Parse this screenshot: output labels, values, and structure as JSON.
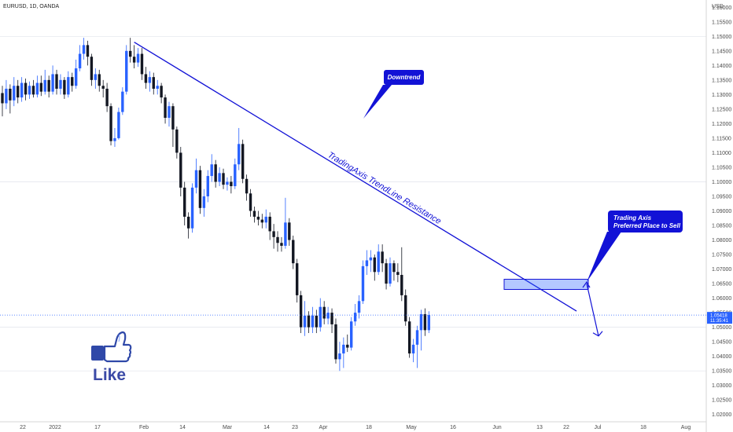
{
  "header": {
    "symbol": "EURUSD, 1D, OANDA",
    "currency": "USD"
  },
  "current_price": {
    "value": 1.05418,
    "label": "1.05418",
    "countdown": "11:35:41",
    "color": "#2962ff"
  },
  "colors": {
    "bull": "#2962ff",
    "bear": "#131722",
    "line": "#1212d6"
  },
  "annotations": {
    "downtrend": "Downtrend",
    "sell_line1": "Trading Axis",
    "sell_line2": "Preferred Place to Sell",
    "trendline": "TradingAxis TrendLine Resistance",
    "like": "Like"
  },
  "icons": {
    "like": "thumbs-up-icon"
  },
  "chart_data": {
    "type": "candlestick",
    "ylim": [
      1.0175,
      1.1625
    ],
    "grid": false,
    "yticks": [
      "1.16000",
      "1.15500",
      "1.15000",
      "1.14500",
      "1.14000",
      "1.13500",
      "1.13000",
      "1.12500",
      "1.12000",
      "1.11500",
      "1.11000",
      "1.10500",
      "1.10000",
      "1.09500",
      "1.09000",
      "1.08500",
      "1.08000",
      "1.07500",
      "1.07000",
      "1.06500",
      "1.06000",
      "1.05500",
      "1.05000",
      "1.04500",
      "1.04000",
      "1.03500",
      "1.03000",
      "1.02500",
      "1.02000"
    ],
    "xticks": [
      "22",
      "2022",
      "17",
      "Feb",
      "14",
      "Mar",
      "14",
      "23",
      "Apr",
      "18",
      "May",
      "16",
      "Jun",
      "13",
      "22",
      "Jul",
      "18",
      "Aug"
    ],
    "candles": [
      [
        1.1305,
        1.127,
        1.133,
        1.1225
      ],
      [
        1.127,
        1.132,
        1.135,
        1.125
      ],
      [
        1.132,
        1.128,
        1.1335,
        1.1235
      ],
      [
        1.128,
        1.133,
        1.136,
        1.126
      ],
      [
        1.133,
        1.129,
        1.135,
        1.127
      ],
      [
        1.129,
        1.134,
        1.136,
        1.1275
      ],
      [
        1.134,
        1.13,
        1.1355,
        1.128
      ],
      [
        1.13,
        1.133,
        1.1345,
        1.1285
      ],
      [
        1.133,
        1.13,
        1.135,
        1.129
      ],
      [
        1.13,
        1.134,
        1.1365,
        1.129
      ],
      [
        1.134,
        1.131,
        1.1365,
        1.1295
      ],
      [
        1.131,
        1.135,
        1.1385,
        1.13
      ],
      [
        1.135,
        1.131,
        1.1365,
        1.129
      ],
      [
        1.131,
        1.137,
        1.14,
        1.13
      ],
      [
        1.137,
        1.132,
        1.1385,
        1.13
      ],
      [
        1.132,
        1.135,
        1.137,
        1.13
      ],
      [
        1.135,
        1.13,
        1.136,
        1.1285
      ],
      [
        1.13,
        1.136,
        1.138,
        1.129
      ],
      [
        1.136,
        1.133,
        1.1375,
        1.131
      ],
      [
        1.133,
        1.139,
        1.142,
        1.132
      ],
      [
        1.139,
        1.144,
        1.147,
        1.138
      ],
      [
        1.144,
        1.147,
        1.1495,
        1.142
      ],
      [
        1.147,
        1.143,
        1.1485,
        1.14
      ],
      [
        1.143,
        1.135,
        1.144,
        1.133
      ],
      [
        1.135,
        1.137,
        1.139,
        1.132
      ],
      [
        1.137,
        1.133,
        1.1385,
        1.131
      ],
      [
        1.133,
        1.132,
        1.135,
        1.129
      ],
      [
        1.132,
        1.126,
        1.134,
        1.124
      ],
      [
        1.126,
        1.114,
        1.127,
        1.1125
      ],
      [
        1.114,
        1.115,
        1.1185,
        1.112
      ],
      [
        1.115,
        1.124,
        1.1255,
        1.1145
      ],
      [
        1.124,
        1.131,
        1.1325,
        1.123
      ],
      [
        1.131,
        1.145,
        1.147,
        1.13
      ],
      [
        1.145,
        1.143,
        1.1495,
        1.141
      ],
      [
        1.143,
        1.141,
        1.147,
        1.139
      ],
      [
        1.141,
        1.144,
        1.146,
        1.1395
      ],
      [
        1.144,
        1.137,
        1.146,
        1.135
      ],
      [
        1.137,
        1.134,
        1.1395,
        1.132
      ],
      [
        1.134,
        1.136,
        1.138,
        1.131
      ],
      [
        1.136,
        1.132,
        1.1375,
        1.13
      ],
      [
        1.132,
        1.133,
        1.135,
        1.13
      ],
      [
        1.133,
        1.129,
        1.134,
        1.127
      ],
      [
        1.129,
        1.122,
        1.13,
        1.12
      ],
      [
        1.122,
        1.126,
        1.1275,
        1.119
      ],
      [
        1.126,
        1.118,
        1.127,
        1.112
      ],
      [
        1.118,
        1.11,
        1.119,
        1.108
      ],
      [
        1.11,
        1.098,
        1.112,
        1.095
      ],
      [
        1.098,
        1.088,
        1.1,
        1.085
      ],
      [
        1.088,
        1.084,
        1.0895,
        1.0805
      ],
      [
        1.084,
        1.098,
        1.0995,
        1.0825
      ],
      [
        1.098,
        1.104,
        1.108,
        1.096
      ],
      [
        1.104,
        1.091,
        1.1055,
        1.089
      ],
      [
        1.091,
        1.095,
        1.0975,
        1.088
      ],
      [
        1.095,
        1.102,
        1.104,
        1.093
      ],
      [
        1.102,
        1.106,
        1.1095,
        1.1
      ],
      [
        1.106,
        1.1,
        1.1075,
        1.098
      ],
      [
        1.1,
        1.103,
        1.105,
        1.0985
      ],
      [
        1.103,
        1.099,
        1.1045,
        1.0975
      ],
      [
        1.099,
        1.1,
        1.1015,
        1.097
      ],
      [
        1.1,
        1.0985,
        1.102,
        1.096
      ],
      [
        1.0985,
        1.106,
        1.108,
        1.0975
      ],
      [
        1.106,
        1.113,
        1.1185,
        1.104
      ],
      [
        1.113,
        1.101,
        1.1145,
        1.0995
      ],
      [
        1.101,
        1.096,
        1.1025,
        1.0935
      ],
      [
        1.096,
        1.09,
        1.0975,
        1.088
      ],
      [
        1.09,
        1.088,
        1.0915,
        1.086
      ],
      [
        1.088,
        1.087,
        1.09,
        1.085
      ],
      [
        1.087,
        1.086,
        1.089,
        1.084
      ],
      [
        1.086,
        1.088,
        1.0905,
        1.084
      ],
      [
        1.088,
        1.083,
        1.0895,
        1.08
      ],
      [
        1.083,
        1.081,
        1.0855,
        1.077
      ],
      [
        1.081,
        1.079,
        1.083,
        1.076
      ],
      [
        1.079,
        1.078,
        1.081,
        1.076
      ],
      [
        1.078,
        1.086,
        1.0945,
        1.077
      ],
      [
        1.086,
        1.08,
        1.0875,
        1.078
      ],
      [
        1.08,
        1.072,
        1.0815,
        1.07
      ],
      [
        1.072,
        1.061,
        1.0735,
        1.0585
      ],
      [
        1.061,
        1.05,
        1.0625,
        1.048
      ],
      [
        1.05,
        1.054,
        1.059,
        1.047
      ],
      [
        1.054,
        1.05,
        1.0555,
        1.048
      ],
      [
        1.05,
        1.054,
        1.057,
        1.048
      ],
      [
        1.054,
        1.05,
        1.056,
        1.048
      ],
      [
        1.05,
        1.057,
        1.06,
        1.0485
      ],
      [
        1.057,
        1.053,
        1.059,
        1.051
      ],
      [
        1.053,
        1.055,
        1.057,
        1.051
      ],
      [
        1.055,
        1.051,
        1.0565,
        1.048
      ],
      [
        1.051,
        1.039,
        1.053,
        1.0375
      ],
      [
        1.039,
        1.041,
        1.045,
        1.035
      ],
      [
        1.041,
        1.044,
        1.0465,
        1.036
      ],
      [
        1.044,
        1.043,
        1.0475,
        1.0415
      ],
      [
        1.043,
        1.052,
        1.0535,
        1.042
      ],
      [
        1.052,
        1.055,
        1.058,
        1.0505
      ],
      [
        1.055,
        1.059,
        1.061,
        1.053
      ],
      [
        1.059,
        1.071,
        1.073,
        1.058
      ],
      [
        1.071,
        1.073,
        1.0765,
        1.068
      ],
      [
        1.073,
        1.074,
        1.0765,
        1.069
      ],
      [
        1.074,
        1.069,
        1.075,
        1.066
      ],
      [
        1.069,
        1.076,
        1.0785,
        1.068
      ],
      [
        1.076,
        1.072,
        1.0785,
        1.069
      ],
      [
        1.072,
        1.065,
        1.0735,
        1.063
      ],
      [
        1.065,
        1.072,
        1.074,
        1.064
      ],
      [
        1.072,
        1.069,
        1.073,
        1.066
      ],
      [
        1.069,
        1.068,
        1.072,
        1.0655
      ],
      [
        1.068,
        1.061,
        1.0775,
        1.059
      ],
      [
        1.061,
        1.052,
        1.063,
        1.0505
      ],
      [
        1.052,
        1.041,
        1.0535,
        1.0395
      ],
      [
        1.041,
        1.044,
        1.046,
        1.038
      ],
      [
        1.044,
        1.049,
        1.0505,
        1.036
      ],
      [
        1.049,
        1.0545,
        1.056,
        1.042
      ],
      [
        1.0545,
        1.049,
        1.0565,
        1.047
      ],
      [
        1.049,
        1.0542,
        1.0555,
        1.048
      ]
    ],
    "trendline": {
      "start": [
        34,
        1.148
      ],
      "end": [
        142,
        1.0605
      ]
    },
    "sell_zone": [
      1.063,
      1.0665
    ],
    "projection": [
      1.065,
      1.047
    ]
  }
}
